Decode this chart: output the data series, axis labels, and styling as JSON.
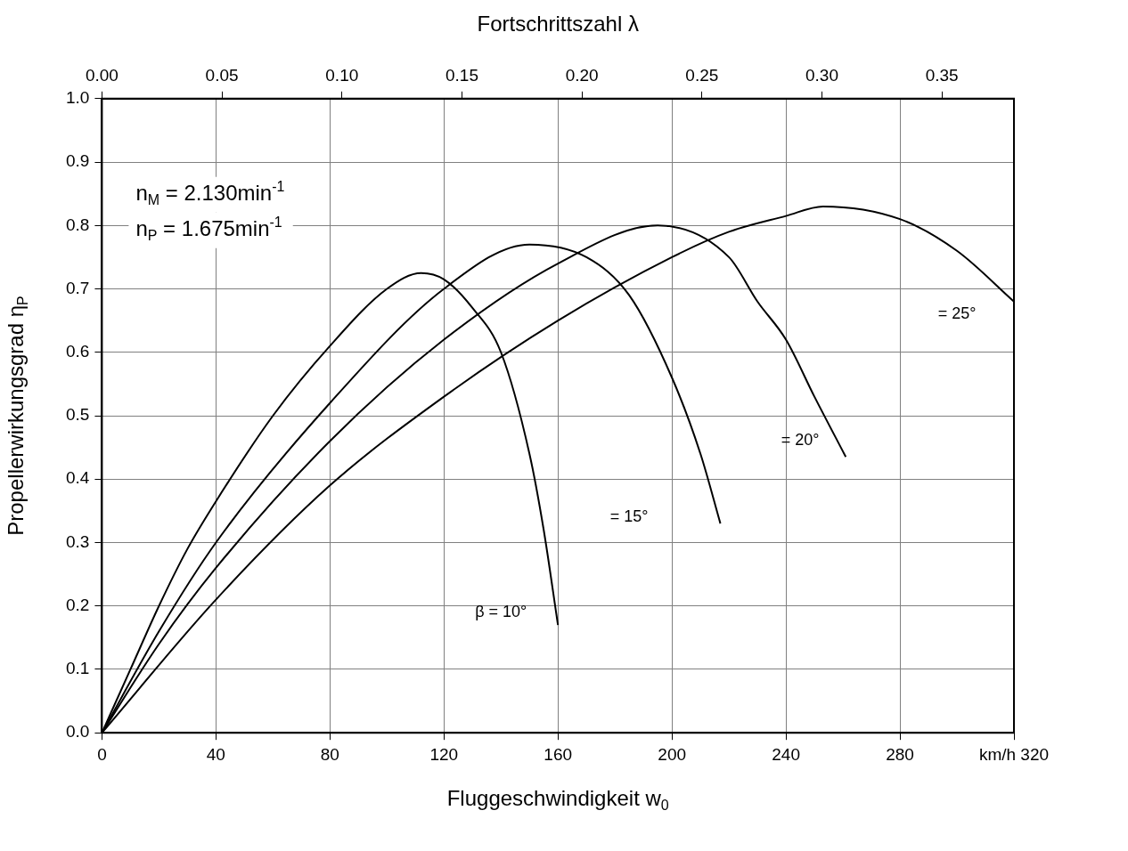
{
  "chart_data": {
    "type": "line",
    "xlabel": "Fluggeschwindigkeit w$_{0}$",
    "ylabel": "Propellerwirkungsgrad η$_{P}$",
    "x2label": "Fortschrittszahl λ",
    "xlim": [
      0,
      320
    ],
    "xticks": [
      0,
      40,
      80,
      120,
      160,
      200,
      240,
      280,
      {
        "value": 320,
        "label": "km/h 320"
      }
    ],
    "x2lim": [
      0,
      0.38
    ],
    "x2ticks": [
      {
        "value": 0,
        "label": "0.00"
      },
      {
        "value": 0.05,
        "label": "0.05"
      },
      {
        "value": 0.1,
        "label": "0.10"
      },
      {
        "value": 0.15,
        "label": "0.15"
      },
      {
        "value": 0.2,
        "label": "0.20"
      },
      {
        "value": 0.25,
        "label": "0.25"
      },
      {
        "value": 0.3,
        "label": "0.30"
      },
      {
        "value": 0.35,
        "label": "0.35"
      }
    ],
    "ylim": [
      0,
      1
    ],
    "yticks": [
      {
        "value": 0,
        "label": "0.0"
      },
      {
        "value": 0.1,
        "label": "0.1"
      },
      {
        "value": 0.2,
        "label": "0.2"
      },
      {
        "value": 0.3,
        "label": "0.3"
      },
      {
        "value": 0.4,
        "label": "0.4"
      },
      {
        "value": 0.5,
        "label": "0.5"
      },
      {
        "value": 0.6,
        "label": "0.6"
      },
      {
        "value": 0.7,
        "label": "0.7"
      },
      {
        "value": 0.8,
        "label": "0.8"
      },
      {
        "value": 0.9,
        "label": "0.9"
      },
      {
        "value": 1,
        "label": "1.0"
      }
    ],
    "grid": true,
    "legend": false,
    "marker": "none",
    "line_style": "solid",
    "series": [
      {
        "color": "#000000",
        "x": [
          0,
          10,
          20,
          30,
          40,
          60,
          80,
          100,
          112,
          120,
          130,
          140,
          150,
          155,
          160
        ],
        "values": [
          0,
          0.1,
          0.2,
          0.29,
          0.365,
          0.5,
          0.61,
          0.7,
          0.725,
          0.715,
          0.67,
          0.6,
          0.44,
          0.32,
          0.17
        ]
      },
      {
        "color": "#000000",
        "x": [
          0,
          20,
          40,
          80,
          120,
          150,
          170,
          185,
          200,
          210,
          217
        ],
        "values": [
          0,
          0.16,
          0.3,
          0.52,
          0.7,
          0.77,
          0.75,
          0.69,
          0.56,
          0.44,
          0.33
        ]
      },
      {
        "color": "#000000",
        "x": [
          0,
          20,
          40,
          80,
          120,
          160,
          195,
          220,
          230,
          240,
          250,
          261
        ],
        "values": [
          0,
          0.14,
          0.26,
          0.46,
          0.62,
          0.74,
          0.8,
          0.75,
          0.68,
          0.62,
          0.53,
          0.435
        ]
      },
      {
        "color": "#000000",
        "x": [
          0,
          40,
          80,
          120,
          160,
          200,
          220,
          240,
          253,
          280,
          300,
          320
        ],
        "values": [
          0,
          0.21,
          0.39,
          0.53,
          0.65,
          0.75,
          0.79,
          0.815,
          0.83,
          0.81,
          0.76,
          0.68
        ]
      }
    ],
    "annotations": [
      "n$_{M}$ = 2.130min$^{-1}$",
      "n$_{P}$ = 1.675min$^{-1}$",
      "β = 10°",
      "= 15°",
      "= 20°",
      "= 25°"
    ]
  }
}
